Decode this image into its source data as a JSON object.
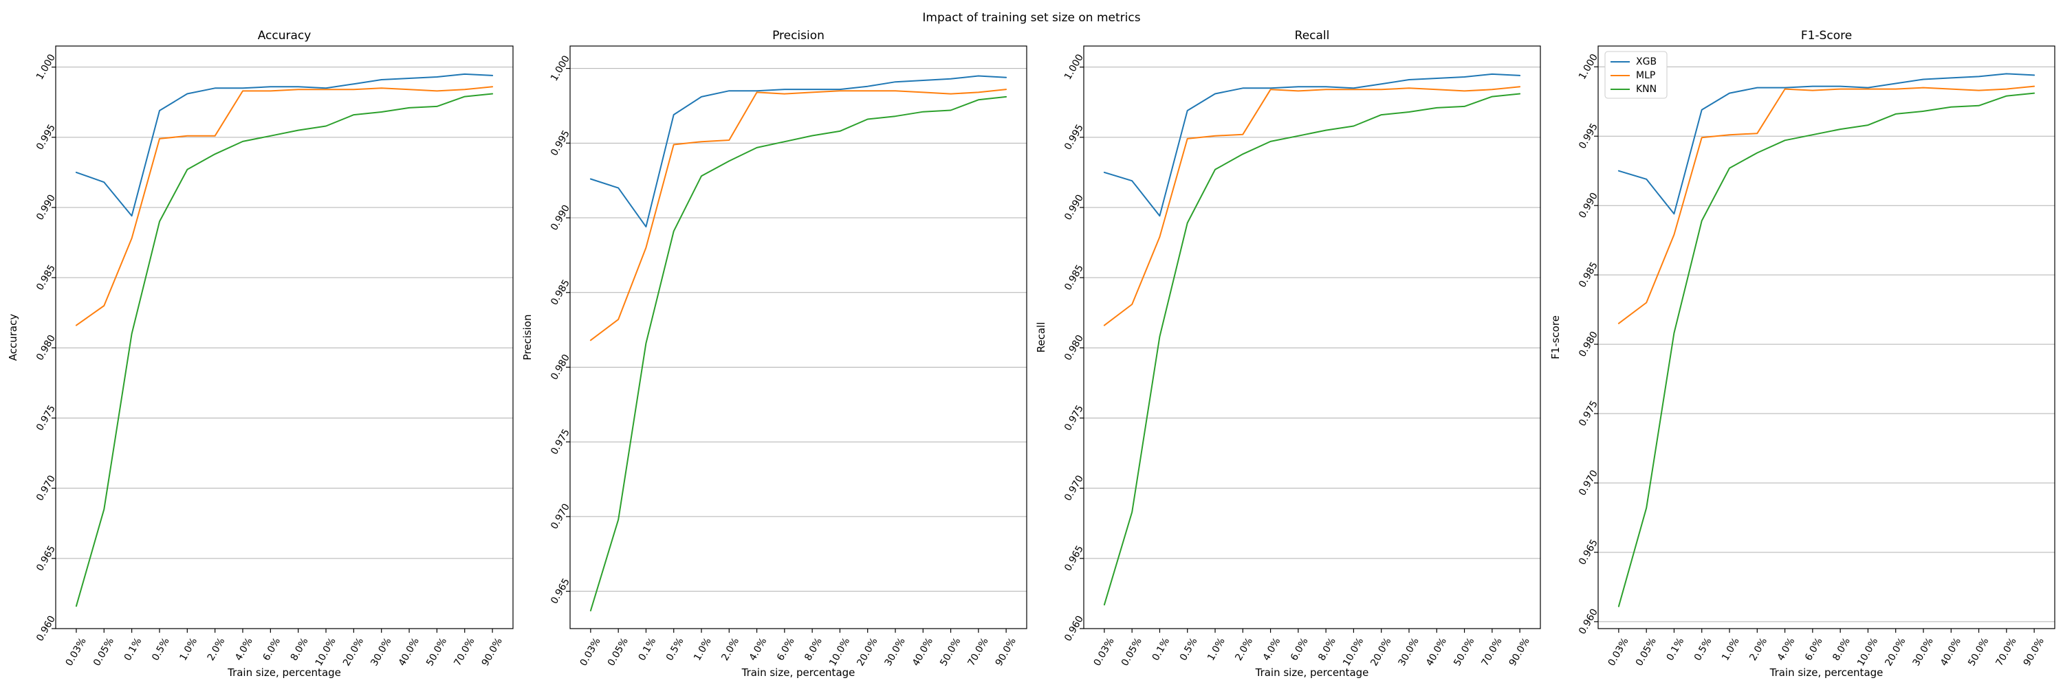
{
  "suptitle": "Impact of training set size on metrics",
  "chart_data": [
    {
      "type": "line",
      "title": "Accuracy",
      "xlabel": "Train size, percentage",
      "ylabel": "Accuracy",
      "categories": [
        "0.03%",
        "0.05%",
        "0.1%",
        "0.5%",
        "1.0%",
        "2.0%",
        "4.0%",
        "6.0%",
        "8.0%",
        "10.0%",
        "20.0%",
        "30.0%",
        "40.0%",
        "50.0%",
        "70.0%",
        "90.0%"
      ],
      "ylim": [
        0.96,
        1.0015
      ],
      "yticks": [
        "0.960",
        "0.965",
        "0.970",
        "0.975",
        "0.980",
        "0.985",
        "0.990",
        "0.995",
        "1.000"
      ],
      "grid": "horizontal",
      "legend": null,
      "series": [
        {
          "name": "XGB",
          "color": "#1f77b4",
          "values": [
            0.9925,
            0.9918,
            0.9894,
            0.9969,
            0.9981,
            0.9985,
            0.9985,
            0.9986,
            0.9986,
            0.9985,
            0.9988,
            0.9991,
            0.9992,
            0.9993,
            0.9995,
            0.9994
          ]
        },
        {
          "name": "MLP",
          "color": "#ff7f0e",
          "values": [
            0.9816,
            0.983,
            0.9878,
            0.9949,
            0.9951,
            0.9951,
            0.9983,
            0.9983,
            0.9984,
            0.9984,
            0.9984,
            0.9985,
            0.9984,
            0.9983,
            0.9984,
            0.9986
          ]
        },
        {
          "name": "KNN",
          "color": "#2ca02c",
          "values": [
            0.9616,
            0.9685,
            0.981,
            0.989,
            0.9927,
            0.9938,
            0.9947,
            0.9951,
            0.9955,
            0.9958,
            0.9966,
            0.9968,
            0.9971,
            0.9972,
            0.9979,
            0.9981
          ]
        }
      ]
    },
    {
      "type": "line",
      "title": "Precision",
      "xlabel": "Train size, percentage",
      "ylabel": "Precision",
      "categories": [
        "0.03%",
        "0.05%",
        "0.1%",
        "0.5%",
        "1.0%",
        "2.0%",
        "4.0%",
        "6.0%",
        "8.0%",
        "10.0%",
        "20.0%",
        "30.0%",
        "40.0%",
        "50.0%",
        "70.0%",
        "90.0%"
      ],
      "ylim": [
        0.9625,
        1.0015
      ],
      "yticks": [
        "0.965",
        "0.970",
        "0.975",
        "0.980",
        "0.985",
        "0.990",
        "0.995",
        "1.000"
      ],
      "grid": "horizontal",
      "legend": null,
      "series": [
        {
          "name": "XGB",
          "color": "#1f77b4",
          "values": [
            0.9926,
            0.992,
            0.9894,
            0.9969,
            0.9981,
            0.9985,
            0.9985,
            0.9986,
            0.9986,
            0.9986,
            0.9988,
            0.9991,
            0.9992,
            0.9993,
            0.9995,
            0.9994
          ]
        },
        {
          "name": "MLP",
          "color": "#ff7f0e",
          "values": [
            0.9818,
            0.9832,
            0.988,
            0.9949,
            0.9951,
            0.9952,
            0.9984,
            0.9983,
            0.9984,
            0.9985,
            0.9985,
            0.9985,
            0.9984,
            0.9983,
            0.9984,
            0.9986
          ]
        },
        {
          "name": "KNN",
          "color": "#2ca02c",
          "values": [
            0.9637,
            0.9698,
            0.9816,
            0.9891,
            0.9928,
            0.9938,
            0.9947,
            0.9951,
            0.9955,
            0.9958,
            0.9966,
            0.9968,
            0.9971,
            0.9972,
            0.9979,
            0.9981
          ]
        }
      ]
    },
    {
      "type": "line",
      "title": "Recall",
      "xlabel": "Train size, percentage",
      "ylabel": "Recall",
      "categories": [
        "0.03%",
        "0.05%",
        "0.1%",
        "0.5%",
        "1.0%",
        "2.0%",
        "4.0%",
        "6.0%",
        "8.0%",
        "10.0%",
        "20.0%",
        "30.0%",
        "40.0%",
        "50.0%",
        "70.0%",
        "90.0%"
      ],
      "ylim": [
        0.96,
        1.0015
      ],
      "yticks": [
        "0.960",
        "0.965",
        "0.970",
        "0.975",
        "0.980",
        "0.985",
        "0.990",
        "0.995",
        "1.000"
      ],
      "grid": "horizontal",
      "legend": null,
      "series": [
        {
          "name": "XGB",
          "color": "#1f77b4",
          "values": [
            0.9925,
            0.9919,
            0.9894,
            0.9969,
            0.9981,
            0.9985,
            0.9985,
            0.9986,
            0.9986,
            0.9985,
            0.9988,
            0.9991,
            0.9992,
            0.9993,
            0.9995,
            0.9994
          ]
        },
        {
          "name": "MLP",
          "color": "#ff7f0e",
          "values": [
            0.9816,
            0.9831,
            0.9879,
            0.9949,
            0.9951,
            0.9952,
            0.9984,
            0.9983,
            0.9984,
            0.9984,
            0.9984,
            0.9985,
            0.9984,
            0.9983,
            0.9984,
            0.9986
          ]
        },
        {
          "name": "KNN",
          "color": "#2ca02c",
          "values": [
            0.9617,
            0.9683,
            0.9808,
            0.9889,
            0.9927,
            0.9938,
            0.9947,
            0.9951,
            0.9955,
            0.9958,
            0.9966,
            0.9968,
            0.9971,
            0.9972,
            0.9979,
            0.9981
          ]
        }
      ]
    },
    {
      "type": "line",
      "title": "F1-Score",
      "xlabel": "Train size, percentage",
      "ylabel": "F1-score",
      "categories": [
        "0.03%",
        "0.05%",
        "0.1%",
        "0.5%",
        "1.0%",
        "2.0%",
        "4.0%",
        "6.0%",
        "8.0%",
        "10.0%",
        "20.0%",
        "30.0%",
        "40.0%",
        "50.0%",
        "70.0%",
        "90.0%"
      ],
      "ylim": [
        0.9595,
        1.0015
      ],
      "yticks": [
        "0.960",
        "0.965",
        "0.970",
        "0.975",
        "0.980",
        "0.985",
        "0.990",
        "0.995",
        "1.000"
      ],
      "grid": "horizontal",
      "legend": "upper left",
      "series": [
        {
          "name": "XGB",
          "color": "#1f77b4",
          "values": [
            0.9925,
            0.9919,
            0.9894,
            0.9969,
            0.9981,
            0.9985,
            0.9985,
            0.9986,
            0.9986,
            0.9985,
            0.9988,
            0.9991,
            0.9992,
            0.9993,
            0.9995,
            0.9994
          ]
        },
        {
          "name": "MLP",
          "color": "#ff7f0e",
          "values": [
            0.9815,
            0.983,
            0.9879,
            0.9949,
            0.9951,
            0.9952,
            0.9984,
            0.9983,
            0.9984,
            0.9984,
            0.9984,
            0.9985,
            0.9984,
            0.9983,
            0.9984,
            0.9986
          ]
        },
        {
          "name": "KNN",
          "color": "#2ca02c",
          "values": [
            0.9611,
            0.9682,
            0.9808,
            0.9889,
            0.9927,
            0.9938,
            0.9947,
            0.9951,
            0.9955,
            0.9958,
            0.9966,
            0.9968,
            0.9971,
            0.9972,
            0.9979,
            0.9981
          ]
        }
      ]
    }
  ]
}
